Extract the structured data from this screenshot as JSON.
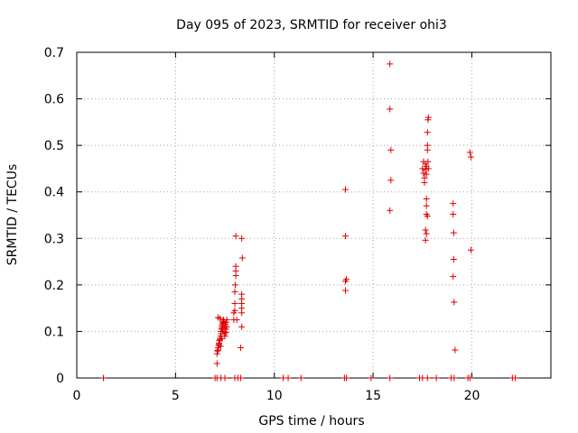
{
  "chart_data": {
    "type": "scatter",
    "title": "Day 095 of 2023, SRMTID for receiver ohi3",
    "xlabel": "GPS time / hours",
    "ylabel": "SRMTID / TECUs",
    "xlim": [
      0,
      24
    ],
    "ylim": [
      0,
      0.7
    ],
    "xticks": [
      0,
      5,
      10,
      15,
      20
    ],
    "yticks": [
      0,
      0.1,
      0.2,
      0.3,
      0.4,
      0.5,
      0.6,
      0.7
    ],
    "xtick_labels": [
      "0",
      "5",
      "10",
      "15",
      "20"
    ],
    "ytick_labels": [
      "0",
      "0.1",
      "0.2",
      "0.3",
      "0.4",
      "0.5",
      "0.6",
      "0.7"
    ],
    "grid": true,
    "marker": "+",
    "color": "#dd0000",
    "series": [
      {
        "name": "SRMTID",
        "points": [
          [
            1.35,
            0.0
          ],
          [
            7.0,
            0.0
          ],
          [
            7.1,
            0.0
          ],
          [
            7.3,
            0.0
          ],
          [
            7.5,
            0.0
          ],
          [
            8.0,
            0.0
          ],
          [
            8.15,
            0.0
          ],
          [
            8.3,
            0.0
          ],
          [
            10.45,
            0.0
          ],
          [
            10.7,
            0.0
          ],
          [
            11.35,
            0.0
          ],
          [
            13.55,
            0.0
          ],
          [
            13.65,
            0.0
          ],
          [
            14.9,
            0.0
          ],
          [
            15.85,
            0.0
          ],
          [
            17.35,
            0.0
          ],
          [
            17.5,
            0.0
          ],
          [
            17.75,
            0.0
          ],
          [
            18.2,
            0.0
          ],
          [
            18.95,
            0.0
          ],
          [
            19.1,
            0.0
          ],
          [
            19.8,
            0.0
          ],
          [
            19.9,
            0.0
          ],
          [
            22.05,
            0.0
          ],
          [
            22.2,
            0.0
          ],
          [
            7.1,
            0.031
          ],
          [
            7.1,
            0.052
          ],
          [
            7.12,
            0.058
          ],
          [
            7.15,
            0.06
          ],
          [
            7.15,
            0.065
          ],
          [
            7.18,
            0.07
          ],
          [
            7.2,
            0.072
          ],
          [
            7.2,
            0.075
          ],
          [
            7.22,
            0.08
          ],
          [
            7.25,
            0.082
          ],
          [
            7.25,
            0.085
          ],
          [
            7.28,
            0.09
          ],
          [
            7.3,
            0.095
          ],
          [
            7.3,
            0.1
          ],
          [
            7.32,
            0.105
          ],
          [
            7.35,
            0.108
          ],
          [
            7.35,
            0.112
          ],
          [
            7.38,
            0.115
          ],
          [
            7.4,
            0.118
          ],
          [
            7.4,
            0.12
          ],
          [
            7.42,
            0.125
          ],
          [
            7.45,
            0.122
          ],
          [
            7.45,
            0.1
          ],
          [
            7.48,
            0.095
          ],
          [
            7.5,
            0.09
          ],
          [
            7.5,
            0.11
          ],
          [
            7.52,
            0.115
          ],
          [
            7.55,
            0.105
          ],
          [
            7.55,
            0.098
          ],
          [
            7.58,
            0.12
          ],
          [
            7.6,
            0.125
          ],
          [
            7.6,
            0.11
          ],
          [
            7.15,
            0.13
          ],
          [
            7.25,
            0.128
          ],
          [
            7.38,
            0.1
          ],
          [
            7.28,
            0.068
          ],
          [
            7.35,
            0.085
          ],
          [
            7.45,
            0.105
          ],
          [
            7.95,
            0.125
          ],
          [
            7.95,
            0.14
          ],
          [
            8.0,
            0.145
          ],
          [
            8.0,
            0.16
          ],
          [
            8.0,
            0.185
          ],
          [
            8.02,
            0.2
          ],
          [
            8.05,
            0.22
          ],
          [
            8.05,
            0.23
          ],
          [
            8.05,
            0.24
          ],
          [
            8.05,
            0.305
          ],
          [
            8.1,
            0.125
          ],
          [
            8.3,
            0.065
          ],
          [
            8.35,
            0.11
          ],
          [
            8.35,
            0.14
          ],
          [
            8.35,
            0.15
          ],
          [
            8.35,
            0.16
          ],
          [
            8.35,
            0.17
          ],
          [
            8.35,
            0.18
          ],
          [
            8.38,
            0.258
          ],
          [
            8.35,
            0.3
          ],
          [
            13.6,
            0.188
          ],
          [
            13.6,
            0.208
          ],
          [
            13.65,
            0.212
          ],
          [
            13.6,
            0.305
          ],
          [
            13.6,
            0.405
          ],
          [
            15.85,
            0.36
          ],
          [
            15.9,
            0.425
          ],
          [
            15.9,
            0.49
          ],
          [
            15.85,
            0.578
          ],
          [
            15.85,
            0.675
          ],
          [
            17.5,
            0.45
          ],
          [
            17.55,
            0.465
          ],
          [
            17.55,
            0.44
          ],
          [
            17.6,
            0.43
          ],
          [
            17.6,
            0.42
          ],
          [
            17.65,
            0.46
          ],
          [
            17.65,
            0.448
          ],
          [
            17.7,
            0.455
          ],
          [
            17.7,
            0.438
          ],
          [
            17.7,
            0.385
          ],
          [
            17.7,
            0.37
          ],
          [
            17.7,
            0.352
          ],
          [
            17.75,
            0.348
          ],
          [
            17.65,
            0.318
          ],
          [
            17.7,
            0.31
          ],
          [
            17.65,
            0.296
          ],
          [
            17.75,
            0.49
          ],
          [
            17.75,
            0.5
          ],
          [
            17.75,
            0.528
          ],
          [
            17.78,
            0.555
          ],
          [
            17.8,
            0.56
          ],
          [
            17.78,
            0.465
          ],
          [
            17.8,
            0.45
          ],
          [
            19.05,
            0.375
          ],
          [
            19.05,
            0.352
          ],
          [
            19.08,
            0.312
          ],
          [
            19.08,
            0.255
          ],
          [
            19.05,
            0.218
          ],
          [
            19.1,
            0.163
          ],
          [
            19.15,
            0.06
          ],
          [
            19.9,
            0.485
          ],
          [
            19.95,
            0.475
          ],
          [
            19.95,
            0.275
          ]
        ]
      }
    ]
  }
}
